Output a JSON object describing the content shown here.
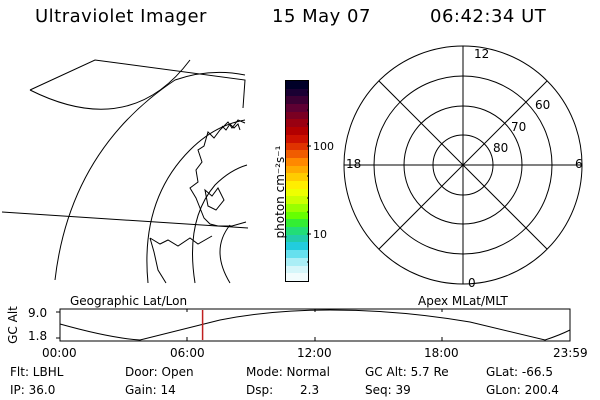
{
  "header": {
    "instrument": "Ultraviolet Imager",
    "date": "15 May 07",
    "time": "06:42:34 UT"
  },
  "colorbar": {
    "unit_label": "photon cm⁻²s⁻¹",
    "tick_100": "100",
    "tick_10": "10",
    "colors": [
      "#000028",
      "#1a0033",
      "#3b0033",
      "#5e0033",
      "#7a0022",
      "#990011",
      "#b30000",
      "#cc1100",
      "#e03300",
      "#f05c00",
      "#ff8800",
      "#ffaa00",
      "#ffcc00",
      "#ffee00",
      "#eeff00",
      "#ccff00",
      "#99ff00",
      "#66ff00",
      "#33ee33",
      "#22dd77",
      "#22ccaa",
      "#22ccdd",
      "#66e0ee",
      "#aaeef6",
      "#d6f6fa",
      "#f2fcfd"
    ]
  },
  "geo_map": {
    "label": "Geographic Lat/Lon"
  },
  "polar_plot": {
    "label": "Apex MLat/MLT",
    "mlt_top": "12",
    "mlt_left": "18",
    "mlt_right": "6",
    "mlt_bottom": "0",
    "lat_60": "60",
    "lat_70": "70",
    "lat_80": "80"
  },
  "altitude_plot": {
    "ylabel": "GC Alt",
    "ytick_top": "9.0",
    "ytick_bottom": "1.8",
    "xticks": [
      "00:00",
      "06:00",
      "12:00",
      "18:00",
      "23:59"
    ],
    "current_time_fraction": 0.2796
  },
  "status": {
    "filter": "Flt: LBHL",
    "door": "Door: Open",
    "mode": "Mode: Normal",
    "gc_alt": "GC Alt: 5.7 Re",
    "glat": "GLat: -66.5",
    "ip": "IP: 36.0",
    "gain": "Gain: 14",
    "dsp_key": "Dsp:",
    "dsp_val": "2.3",
    "seq": "Seq: 39",
    "glon": "GLon: 200.4"
  }
}
